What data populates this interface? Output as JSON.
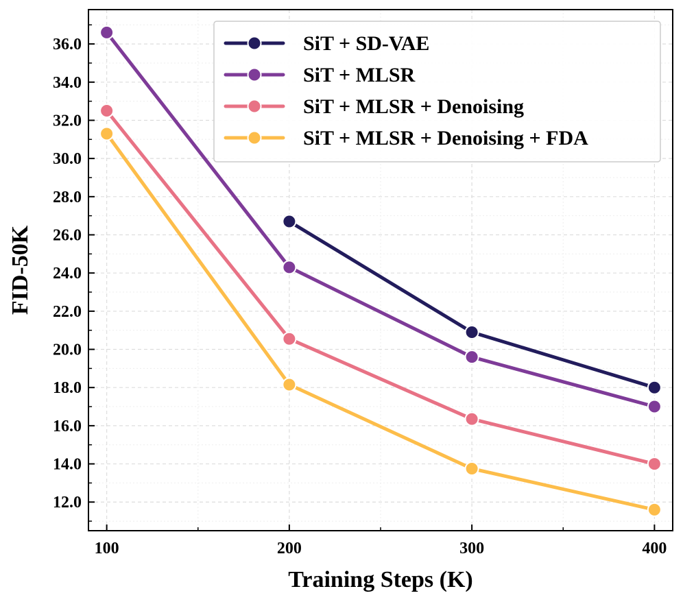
{
  "chart_data": {
    "type": "line",
    "title": "",
    "xlabel": "Training Steps (K)",
    "ylabel": "FID-50K",
    "xlim": [
      90,
      410
    ],
    "ylim": [
      10.5,
      37.8
    ],
    "xticks": [
      100,
      200,
      300,
      400
    ],
    "xtick_labels": [
      "100",
      "200",
      "300",
      "400"
    ],
    "yticks": [
      12,
      14,
      16,
      18,
      20,
      22,
      24,
      26,
      28,
      30,
      32,
      34,
      36
    ],
    "ytick_labels": [
      "12.0",
      "14.0",
      "16.0",
      "18.0",
      "20.0",
      "22.0",
      "24.0",
      "26.0",
      "28.0",
      "30.0",
      "32.0",
      "34.0",
      "36.0"
    ],
    "grid": true,
    "legend_position": "top-right",
    "series": [
      {
        "name": "SiT + SD-VAE",
        "color": "#221c5c",
        "x": [
          200,
          300,
          400
        ],
        "y": [
          26.7,
          20.9,
          18.0
        ]
      },
      {
        "name": "SiT + MLSR",
        "color": "#7e3b98",
        "x": [
          100,
          200,
          300,
          400
        ],
        "y": [
          36.6,
          24.3,
          19.6,
          17.0
        ]
      },
      {
        "name": "SiT + MLSR + Denoising",
        "color": "#e87285",
        "x": [
          100,
          200,
          300,
          400
        ],
        "y": [
          32.5,
          20.55,
          16.35,
          14.0
        ]
      },
      {
        "name": "SiT + MLSR + Denoising + FDA",
        "color": "#fdbd4a",
        "x": [
          100,
          200,
          300,
          400
        ],
        "y": [
          31.3,
          18.15,
          13.75,
          11.6
        ]
      }
    ]
  }
}
